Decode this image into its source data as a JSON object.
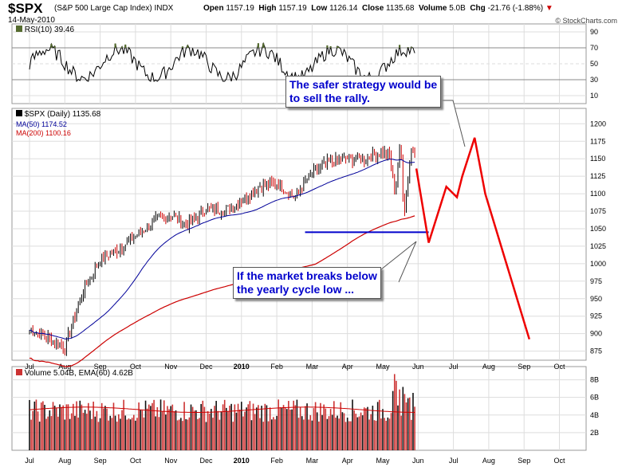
{
  "header": {
    "symbol": "$SPX",
    "name": "(S&P 500 Large Cap Index)  INDX",
    "date": "14-May-2010",
    "open_label": "Open",
    "open": "1157.19",
    "high_label": "High",
    "high": "1157.19",
    "low_label": "Low",
    "low": "1126.14",
    "close_label": "Close",
    "close": "1135.68",
    "volume_label": "Volume",
    "volume": "5.0B",
    "chg_label": "Chg",
    "chg": "-21.76 (-1.88%)",
    "copyright": "© StockCharts.com"
  },
  "legends": {
    "rsi": "RSI(10) 39.46",
    "price": "$SPX (Daily) 1135.68",
    "ma50": "MA(50) 1174.52",
    "ma200": "MA(200) 1100.16",
    "volume": "Volume 5.04B, EMA(60) 4.62B"
  },
  "annotations": {
    "safer": [
      "The safer strategy would be",
      "to sell the rally."
    ],
    "breaks": [
      "If the market breaks below",
      "the yearly cycle low ..."
    ]
  },
  "colors": {
    "up": "#000000",
    "down": "#cc0000",
    "ma50": "#000099",
    "ma200": "#cc0000",
    "projection": "#ee0000",
    "support": "#0000cc",
    "callout_text": "#0000cc",
    "volume_bar": "#cc3333",
    "rsi_fill": "#556b2f"
  },
  "chart_data": [
    {
      "type": "line",
      "panel": "rsi",
      "series": [
        {
          "name": "RSI(10)",
          "last": 39.46
        }
      ],
      "yticks": [
        10,
        30,
        50,
        70,
        90
      ],
      "ylim": [
        0,
        100
      ]
    },
    {
      "type": "line",
      "panel": "price",
      "title": "$SPX (Daily) 1135.68",
      "x_labels": [
        "Jul",
        "Aug",
        "Sep",
        "Oct",
        "Nov",
        "Dec",
        "2010",
        "Feb",
        "Mar",
        "Apr",
        "May",
        "Jun",
        "Jul",
        "Aug",
        "Sep",
        "Oct"
      ],
      "yticks": [
        875,
        900,
        925,
        950,
        975,
        1000,
        1025,
        1050,
        1075,
        1100,
        1125,
        1150,
        1175,
        1200
      ],
      "ylim": [
        862,
        1222
      ],
      "series": [
        {
          "name": "$SPX",
          "x": [
            0,
            0.5,
            1,
            1.5,
            2,
            2.5,
            3,
            3.5,
            4,
            4.5,
            5,
            5.5,
            6,
            6.5,
            7,
            7.5,
            8,
            8.5,
            9,
            9.5,
            10,
            10.2,
            10.35,
            10.5,
            10.6,
            10.7,
            10.8,
            10.9,
            10.95
          ],
          "values": [
            905,
            895,
            880,
            960,
            1005,
            1020,
            1040,
            1060,
            1070,
            1055,
            1080,
            1075,
            1090,
            1110,
            1115,
            1095,
            1130,
            1145,
            1150,
            1150,
            1160,
            1155,
            1100,
            1175,
            1070,
            1115,
            1160,
            1165,
            1136
          ]
        },
        {
          "name": "MA(50)",
          "last": 1174.52
        },
        {
          "name": "MA(200)",
          "last": 1100.16
        }
      ],
      "support_level": 1045,
      "projection": {
        "x": [
          10.95,
          11.3,
          11.8,
          12.1,
          12.25,
          12.6,
          12.9,
          14.15
        ],
        "values": [
          1136,
          1030,
          1110,
          1095,
          1125,
          1180,
          1100,
          892
        ]
      }
    },
    {
      "type": "bar",
      "panel": "volume",
      "title": "Volume 5.04B, EMA(60) 4.62B",
      "yticks_label": [
        "2B",
        "4B",
        "6B",
        "8B"
      ],
      "yticks": [
        2,
        4,
        6,
        8
      ],
      "ylim": [
        0,
        9.5
      ],
      "last_volume": 5.04,
      "ema60": 4.62
    }
  ]
}
